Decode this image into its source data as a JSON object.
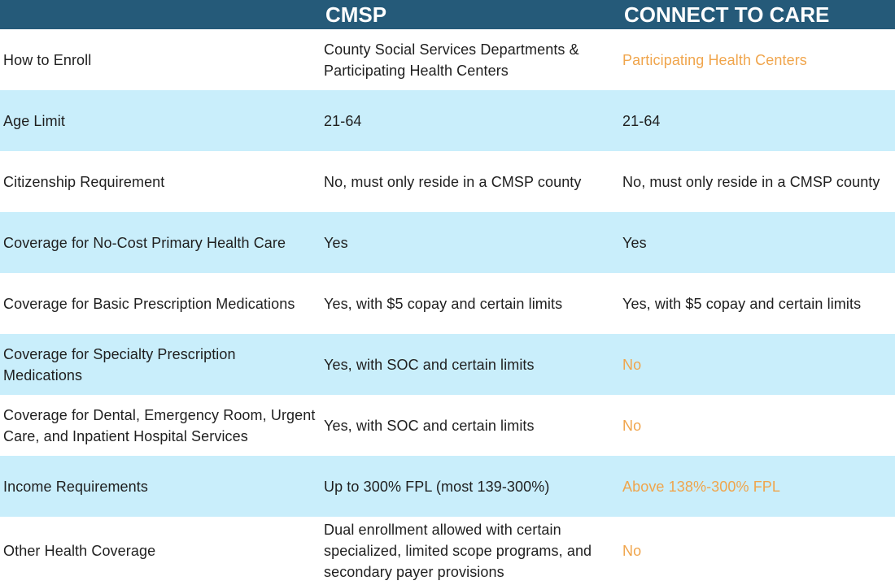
{
  "header": {
    "col1": "",
    "col2": "CMSP",
    "col3": "CONNECT TO CARE"
  },
  "colors": {
    "header_bg": "#255a79",
    "row_blue": "#c9eefb",
    "highlight_text": "#f0a54c"
  },
  "rows": [
    {
      "label": "How to Enroll",
      "cmsp": "County Social Services Departments & Participating Health Centers",
      "ctc": "Participating Health Centers",
      "ctc_highlight": true
    },
    {
      "label": "Age Limit",
      "cmsp": "21-64",
      "ctc": "21-64",
      "ctc_highlight": false
    },
    {
      "label": "Citizenship Requirement",
      "cmsp": "No, must only reside in a CMSP county",
      "ctc": "No, must only reside in a CMSP county",
      "ctc_highlight": false
    },
    {
      "label": "Coverage for No-Cost Primary Health Care",
      "cmsp": "Yes",
      "ctc": "Yes",
      "ctc_highlight": false
    },
    {
      "label": "Coverage for Basic Prescription Medications",
      "cmsp": "Yes, with $5 copay and certain limits",
      "ctc": "Yes, with $5 copay and certain limits",
      "ctc_highlight": false
    },
    {
      "label": "Coverage for Specialty Prescription Medications",
      "cmsp": "Yes, with SOC and certain limits",
      "ctc": "No",
      "ctc_highlight": true
    },
    {
      "label": "Coverage for Dental, Emergency Room, Urgent Care, and Inpatient Hospital Services",
      "cmsp": "Yes, with SOC and certain limits",
      "ctc": "No",
      "ctc_highlight": true
    },
    {
      "label": "Income Requirements",
      "cmsp": "Up to 300% FPL (most 139-300%)",
      "ctc": "Above 138%-300% FPL",
      "ctc_highlight": true
    },
    {
      "label": "Other Health Coverage",
      "cmsp": "Dual enrollment allowed with certain specialized, limited scope programs, and secondary payer provisions",
      "ctc": "No",
      "ctc_highlight": true
    }
  ]
}
